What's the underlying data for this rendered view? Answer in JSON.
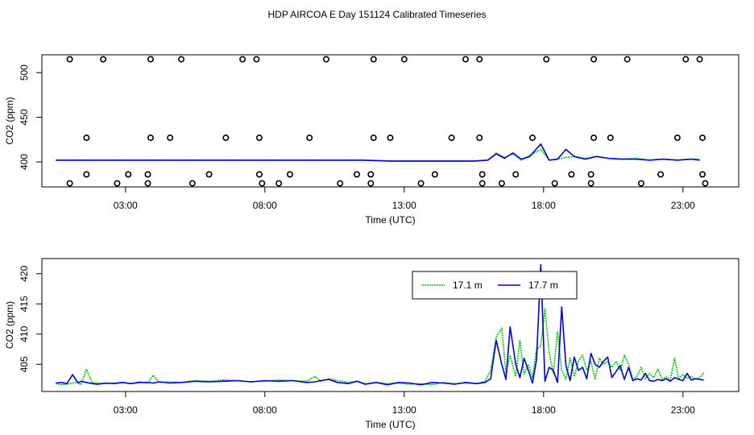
{
  "title": "HDP AIRCOA E  Day 151124  Calibrated Timeseries",
  "colors": {
    "green": "#00cc00",
    "blue": "#0000dd",
    "axis": "#000000"
  },
  "chart_data": [
    {
      "type": "line",
      "panel": "top",
      "title": "HDP AIRCOA E  Day 151124  Calibrated Timeseries",
      "xlabel": "Time (UTC)",
      "ylabel": "CO2 (ppm)",
      "xlim": [
        0.0,
        25.0
      ],
      "ylim": [
        372,
        520
      ],
      "x_ticks": [
        3,
        8,
        13,
        18,
        23
      ],
      "x_tick_labels": [
        "03:00",
        "08:00",
        "13:00",
        "18:00",
        "23:00"
      ],
      "y_ticks": [
        400,
        450,
        500
      ],
      "y_tick_labels": [
        "400",
        "450",
        "500"
      ],
      "grid": false,
      "legend": "none",
      "series": [
        {
          "color": "#00cc00",
          "x": [
            0.5,
            1.5,
            2.5,
            3.5,
            4.5,
            5.5,
            6.5,
            7.5,
            8.5,
            9.5,
            10.5,
            11.5,
            12.5,
            13.5,
            14.5,
            15.5,
            16.0,
            16.3,
            16.6,
            16.9,
            17.2,
            17.5,
            17.9,
            18.2,
            18.5,
            18.8,
            19.1,
            19.5,
            19.9,
            20.3,
            20.8,
            21.3,
            21.8,
            22.3,
            22.8,
            23.3,
            23.6
          ],
          "y": [
            402,
            402,
            402,
            402,
            402,
            402,
            402,
            402,
            402,
            402,
            402,
            402,
            401,
            401,
            401,
            401,
            402,
            410,
            405,
            409,
            402,
            407,
            414,
            402,
            403,
            405,
            406,
            404,
            406,
            404,
            403,
            404,
            402,
            403,
            402,
            403,
            403
          ]
        },
        {
          "color": "#0000dd",
          "x": [
            0.5,
            1.5,
            2.5,
            3.5,
            4.5,
            5.5,
            6.5,
            7.5,
            8.5,
            9.5,
            10.5,
            11.5,
            12.5,
            13.5,
            14.5,
            15.5,
            16.0,
            16.3,
            16.6,
            16.9,
            17.2,
            17.5,
            17.9,
            18.2,
            18.5,
            18.8,
            19.1,
            19.5,
            19.9,
            20.3,
            20.8,
            21.3,
            21.8,
            22.3,
            22.8,
            23.3,
            23.6
          ],
          "y": [
            402,
            402,
            402,
            402,
            402,
            402,
            402,
            402,
            402,
            402,
            402,
            402,
            401,
            401,
            401,
            401,
            402,
            409,
            404,
            410,
            403,
            406,
            420,
            402,
            403,
            414,
            406,
            403,
            406,
            404,
            403,
            403,
            402,
            403,
            402,
            403,
            402
          ]
        },
        {
          "type": "scatter",
          "marker": "open-circle",
          "color": "#000000",
          "x": [
            1.0,
            2.2,
            3.9,
            5.0,
            7.2,
            7.7,
            10.2,
            11.9,
            13.0,
            15.2,
            15.7,
            18.1,
            19.8,
            21.0,
            23.1,
            23.6,
            1.6,
            3.9,
            4.6,
            6.6,
            7.8,
            9.6,
            11.9,
            12.5,
            14.7,
            15.7,
            17.6,
            19.8,
            20.4,
            22.8,
            23.7,
            1.6,
            3.1,
            3.8,
            6.0,
            7.8,
            8.9,
            11.3,
            11.8,
            14.1,
            15.8,
            17.0,
            19.0,
            19.7,
            22.2,
            23.7,
            1.0,
            2.7,
            3.8,
            5.4,
            7.9,
            8.5,
            10.7,
            11.8,
            13.6,
            15.8,
            16.5,
            18.4,
            19.7,
            21.5,
            23.8
          ],
          "y": [
            515,
            515,
            515,
            515,
            515,
            515,
            515,
            515,
            515,
            515,
            515,
            515,
            515,
            515,
            515,
            515,
            427,
            427,
            427,
            427,
            427,
            427,
            427,
            427,
            427,
            427,
            427,
            427,
            427,
            427,
            427,
            386,
            386,
            386,
            386,
            386,
            386,
            386,
            386,
            386,
            386,
            386,
            386,
            386,
            386,
            386,
            376,
            376,
            376,
            376,
            376,
            376,
            376,
            376,
            376,
            376,
            376,
            376,
            376,
            376,
            376
          ]
        }
      ]
    },
    {
      "type": "line",
      "panel": "bottom",
      "xlabel": "Time (UTC)",
      "ylabel": "CO2 (ppm)",
      "xlim": [
        0.0,
        25.0
      ],
      "ylim": [
        400.5,
        422.5
      ],
      "x_ticks": [
        3,
        8,
        13,
        18,
        23
      ],
      "x_tick_labels": [
        "03:00",
        "08:00",
        "13:00",
        "18:00",
        "23:00"
      ],
      "y_ticks": [
        405,
        410,
        415,
        420
      ],
      "y_tick_labels": [
        "405",
        "410",
        "415",
        "420"
      ],
      "grid": false,
      "legend": "top-right",
      "series": [
        {
          "name": "17.1 m",
          "color": "#00cc00",
          "x": [
            0.5,
            0.7,
            0.9,
            1.1,
            1.3,
            1.4,
            1.6,
            1.8,
            2.0,
            2.3,
            2.6,
            2.9,
            3.2,
            3.5,
            3.8,
            4.0,
            4.2,
            4.6,
            5.0,
            5.5,
            6.0,
            6.5,
            7.0,
            7.5,
            8.0,
            8.5,
            9.0,
            9.5,
            9.8,
            10.0,
            10.3,
            10.6,
            11.0,
            11.3,
            11.6,
            12.0,
            12.4,
            12.8,
            13.2,
            13.6,
            14.0,
            14.4,
            14.8,
            15.2,
            15.6,
            15.9,
            16.1,
            16.3,
            16.5,
            16.65,
            16.8,
            17.0,
            17.15,
            17.3,
            17.45,
            17.6,
            17.75,
            17.9,
            18.05,
            18.2,
            18.35,
            18.5,
            18.65,
            18.8,
            18.95,
            19.1,
            19.25,
            19.4,
            19.55,
            19.7,
            19.85,
            20.0,
            20.15,
            20.3,
            20.45,
            20.6,
            20.75,
            20.9,
            21.05,
            21.2,
            21.35,
            21.5,
            21.65,
            21.8,
            21.95,
            22.1,
            22.25,
            22.4,
            22.55,
            22.7,
            22.85,
            23.0,
            23.15,
            23.3,
            23.45,
            23.6,
            23.75
          ],
          "y": [
            401.8,
            401.6,
            401.7,
            401.9,
            402.0,
            401.6,
            404.2,
            402.0,
            401.9,
            401.8,
            401.9,
            402.0,
            401.8,
            402.1,
            401.9,
            403.2,
            402.0,
            402.1,
            402.0,
            402.3,
            402.2,
            402.4,
            402.3,
            402.1,
            402.2,
            402.4,
            402.3,
            402.2,
            403.0,
            402.2,
            402.6,
            402.3,
            402.0,
            402.2,
            401.8,
            402.0,
            401.8,
            401.9,
            401.7,
            401.8,
            401.6,
            402.0,
            401.8,
            401.9,
            401.8,
            402.2,
            404.0,
            409.5,
            411.0,
            403.5,
            406.5,
            403.0,
            409.0,
            403.3,
            405.0,
            402.8,
            407.5,
            408.0,
            414.2,
            407.0,
            403.5,
            410.5,
            404.0,
            402.5,
            406.0,
            403.0,
            405.5,
            406.5,
            404.0,
            405.5,
            402.5,
            406.0,
            405.0,
            405.5,
            404.5,
            405.5,
            404.0,
            406.5,
            405.0,
            402.5,
            403.0,
            404.5,
            402.6,
            403.5,
            402.8,
            404.2,
            402.5,
            402.9,
            402.4,
            406.0,
            402.6,
            403.3,
            402.7,
            403.0,
            402.5,
            402.8,
            403.6
          ]
        },
        {
          "name": "17.7 m",
          "color": "#0000dd",
          "x": [
            0.5,
            0.7,
            0.9,
            1.1,
            1.3,
            1.4,
            1.6,
            1.8,
            2.0,
            2.3,
            2.6,
            2.9,
            3.2,
            3.5,
            3.8,
            4.0,
            4.2,
            4.6,
            5.0,
            5.5,
            6.0,
            6.5,
            7.0,
            7.5,
            8.0,
            8.5,
            9.0,
            9.5,
            9.8,
            10.0,
            10.3,
            10.6,
            11.0,
            11.3,
            11.6,
            12.0,
            12.4,
            12.8,
            13.2,
            13.6,
            14.0,
            14.4,
            14.8,
            15.2,
            15.6,
            15.9,
            16.1,
            16.3,
            16.5,
            16.65,
            16.8,
            17.0,
            17.15,
            17.3,
            17.45,
            17.6,
            17.75,
            17.9,
            18.05,
            18.2,
            18.35,
            18.5,
            18.65,
            18.8,
            18.95,
            19.1,
            19.25,
            19.4,
            19.55,
            19.7,
            19.85,
            20.0,
            20.15,
            20.3,
            20.45,
            20.6,
            20.75,
            20.9,
            21.05,
            21.2,
            21.35,
            21.5,
            21.65,
            21.8,
            21.95,
            22.1,
            22.25,
            22.4,
            22.55,
            22.7,
            22.85,
            23.0,
            23.15,
            23.3,
            23.45,
            23.6,
            23.75
          ],
          "y": [
            401.9,
            402.0,
            401.8,
            403.3,
            401.9,
            402.2,
            402.0,
            401.8,
            401.7,
            401.9,
            401.8,
            402.0,
            401.8,
            402.0,
            402.0,
            401.9,
            402.1,
            401.9,
            402.0,
            402.2,
            402.1,
            402.2,
            402.3,
            402.1,
            402.3,
            402.2,
            402.3,
            402.0,
            402.1,
            402.3,
            402.5,
            402.0,
            401.8,
            402.2,
            401.7,
            402.0,
            401.6,
            402.0,
            401.9,
            401.6,
            402.0,
            401.9,
            401.7,
            402.0,
            401.8,
            402.0,
            402.6,
            409.0,
            405.0,
            402.5,
            411.2,
            405.0,
            402.8,
            406.0,
            404.0,
            401.9,
            405.8,
            421.5,
            402.2,
            404.5,
            404.0,
            402.0,
            414.5,
            404.8,
            402.3,
            406.2,
            404.0,
            404.5,
            402.6,
            406.8,
            405.0,
            404.5,
            405.5,
            406.2,
            402.8,
            403.8,
            404.8,
            402.5,
            404.5,
            402.3,
            402.6,
            402.4,
            403.5,
            402.3,
            402.2,
            402.5,
            402.3,
            402.6,
            402.2,
            402.8,
            402.5,
            402.3,
            403.5,
            402.4,
            402.6,
            402.5,
            402.4
          ]
        }
      ]
    }
  ]
}
